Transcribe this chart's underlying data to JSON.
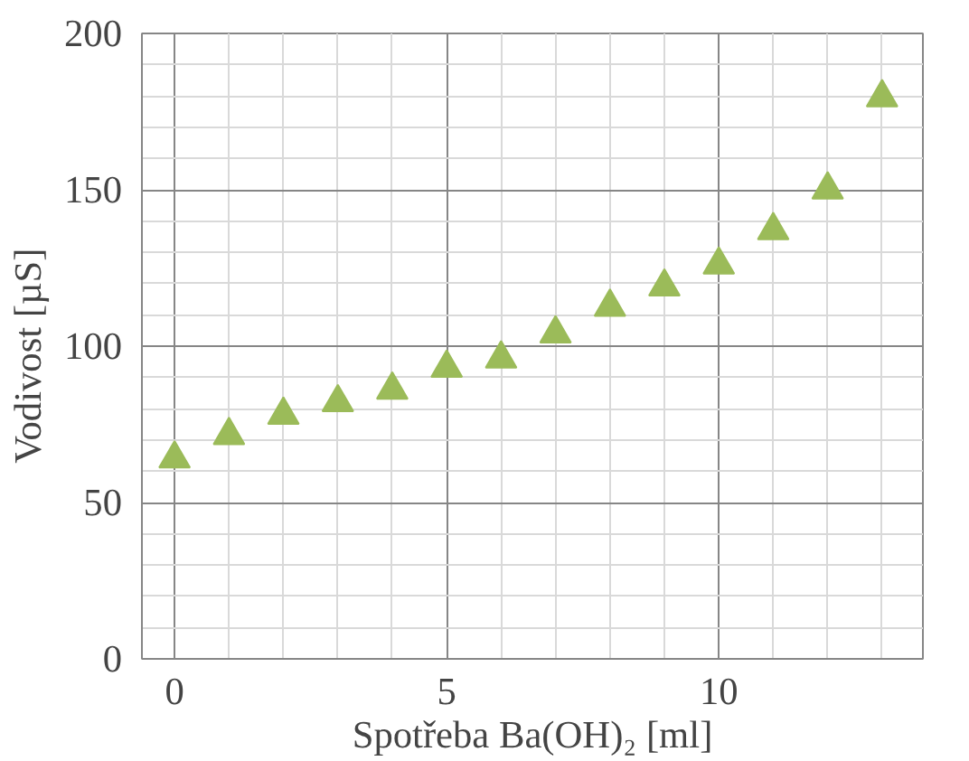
{
  "chart_data": {
    "type": "scatter",
    "xlabel": "Spotřeba Ba(OH)₂ [ml]",
    "ylabel": "Vodivost   [µS]",
    "x": [
      0,
      1,
      2,
      3,
      4,
      5,
      6,
      7,
      8,
      9,
      10,
      11,
      12,
      13
    ],
    "series": [
      {
        "color": "#9bbb59",
        "values": [
          64,
          71.5,
          78,
          82,
          86,
          93,
          96,
          104,
          112.5,
          119,
          126,
          137,
          150,
          179.5
        ]
      }
    ],
    "xlim": [
      -0.6,
      13.75
    ],
    "xticks": [
      0,
      5,
      10
    ],
    "ylim": [
      0,
      200
    ],
    "yticks": [
      0,
      50,
      100,
      150,
      200
    ],
    "grid": true,
    "marker": "triangle"
  }
}
